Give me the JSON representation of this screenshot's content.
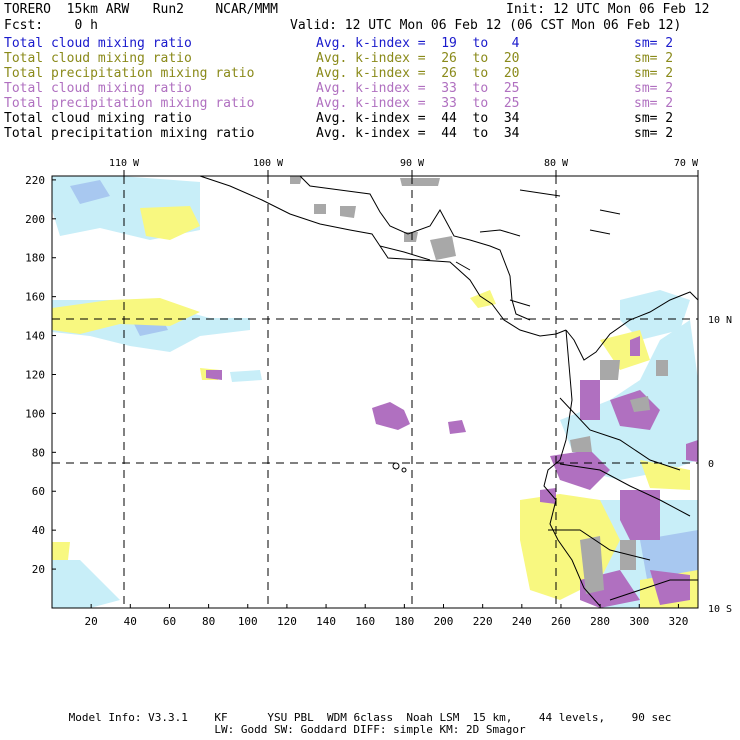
{
  "header": {
    "model": "TORERO  15km ARW   Run2    NCAR/MMM",
    "init": "Init: 12 UTC Mon 06 Feb 12",
    "fcst": "Fcst:    0 h",
    "valid": "Valid: 12 UTC Mon 06 Feb 12 (06 CST Mon 06 Feb 12)"
  },
  "fields": [
    {
      "label": "Total cloud mixing ratio",
      "kindex": "Avg. k-index =  19  to   4",
      "sm": "sm= 2",
      "color": "#1a1acc"
    },
    {
      "label": "Total cloud mixing ratio",
      "kindex": "Avg. k-index =  26  to  20",
      "sm": "sm= 2",
      "color": "#8a8a1a"
    },
    {
      "label": "Total precipitation mixing ratio",
      "kindex": "Avg. k-index =  26  to  20",
      "sm": "sm= 2",
      "color": "#8a8a1a"
    },
    {
      "label": "Total cloud mixing ratio",
      "kindex": "Avg. k-index =  33  to  25",
      "sm": "sm= 2",
      "color": "#b070c0"
    },
    {
      "label": "Total precipitation mixing ratio",
      "kindex": "Avg. k-index =  33  to  25",
      "sm": "sm= 2",
      "color": "#b070c0"
    },
    {
      "label": "Total cloud mixing ratio",
      "kindex": "Avg. k-index =  44  to  34",
      "sm": "sm= 2",
      "color": "#000000"
    },
    {
      "label": "Total precipitation mixing ratio",
      "kindex": "Avg. k-index =  44  to  34",
      "sm": "sm= 2",
      "color": "#000000"
    }
  ],
  "map": {
    "x_ticks": [
      "20",
      "40",
      "60",
      "80",
      "100",
      "120",
      "140",
      "160",
      "180",
      "200",
      "220",
      "240",
      "260",
      "280",
      "300",
      "320"
    ],
    "y_ticks": [
      "20",
      "40",
      "60",
      "80",
      "100",
      "120",
      "140",
      "160",
      "180",
      "200",
      "220"
    ],
    "lon_labels": [
      "110 W",
      "100 W",
      "90 W",
      "80 W",
      "70 W"
    ],
    "lat_labels": [
      "10 N",
      "0",
      "10 S"
    ],
    "colors": {
      "light_blue": "#c8eef8",
      "blue": "#a8c8f0",
      "yellow": "#f8f880",
      "purple": "#b070c0",
      "gray": "#a8a8a8"
    }
  },
  "footer": {
    "line1": "Model Info: V3.3.1    KF      YSU PBL  WDM 6class  Noah LSM  15 km,    44 levels,    90 sec",
    "line2": "LW: Godd SW: Goddard DIFF: simple KM: 2D Smagor"
  }
}
